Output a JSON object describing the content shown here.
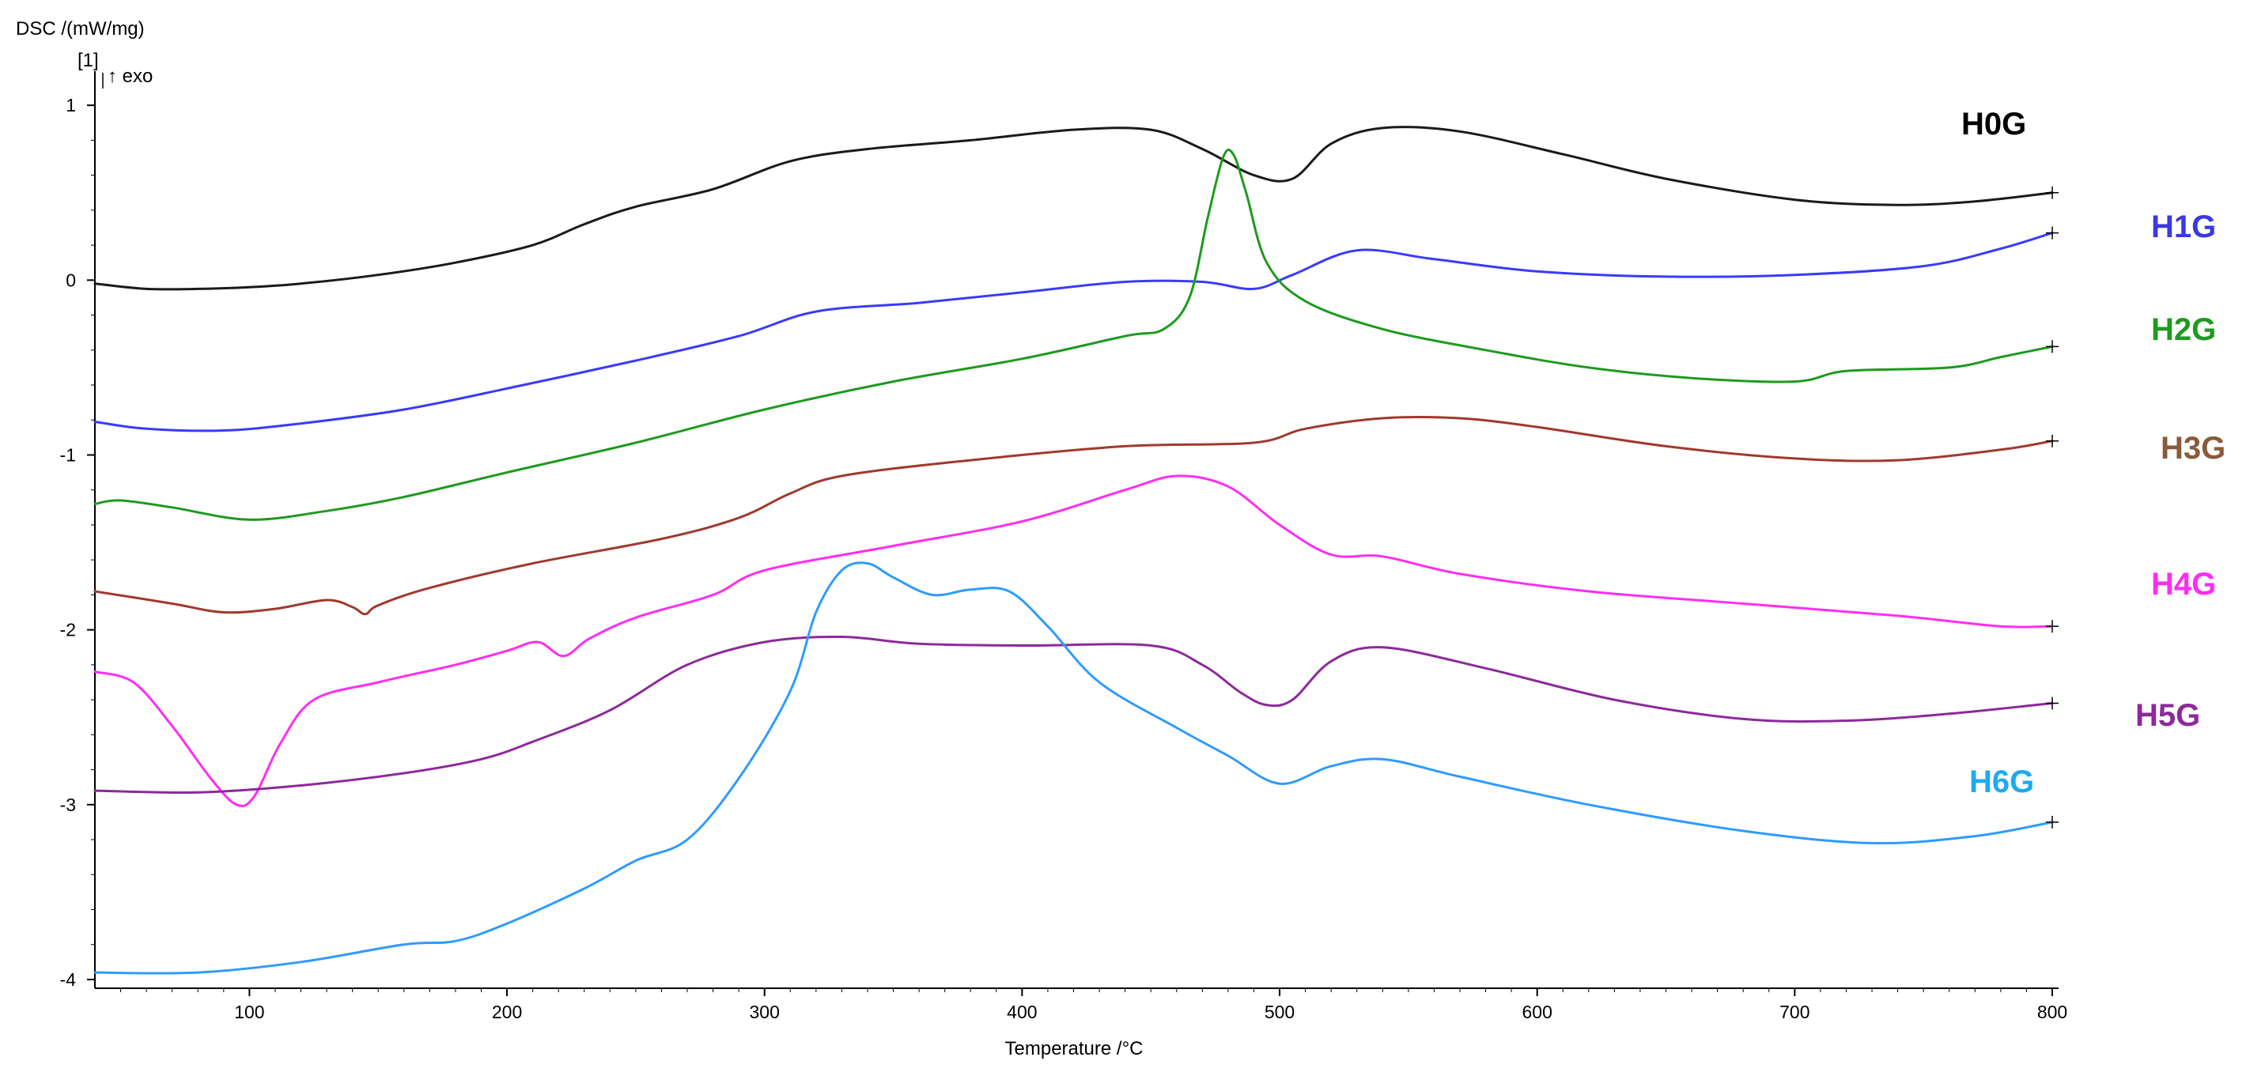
{
  "chart_data": {
    "type": "line",
    "title": "",
    "xlabel": "Temperature /°C",
    "ylabel": "DSC /(mW/mg)",
    "ylabel_unit_marker": "[1]",
    "exo_marker": "↑ exo",
    "xlim": [
      40,
      800
    ],
    "ylim": [
      -4.05,
      1.15
    ],
    "xticks": [
      100,
      200,
      300,
      400,
      500,
      600,
      700,
      800
    ],
    "yticks": [
      1,
      0,
      -1,
      -2,
      -3,
      -4
    ],
    "grid": false,
    "legend_placement": "right (inline labels)",
    "series": [
      {
        "name": "H0G",
        "color": "#1a1a1a",
        "points": [
          [
            40,
            -0.02
          ],
          [
            60,
            -0.05
          ],
          [
            80,
            -0.05
          ],
          [
            100,
            -0.04
          ],
          [
            120,
            -0.02
          ],
          [
            150,
            0.03
          ],
          [
            180,
            0.1
          ],
          [
            210,
            0.2
          ],
          [
            230,
            0.32
          ],
          [
            250,
            0.42
          ],
          [
            280,
            0.52
          ],
          [
            310,
            0.68
          ],
          [
            340,
            0.75
          ],
          [
            380,
            0.8
          ],
          [
            420,
            0.86
          ],
          [
            450,
            0.86
          ],
          [
            470,
            0.75
          ],
          [
            490,
            0.6
          ],
          [
            505,
            0.58
          ],
          [
            520,
            0.78
          ],
          [
            540,
            0.87
          ],
          [
            570,
            0.85
          ],
          [
            610,
            0.72
          ],
          [
            650,
            0.58
          ],
          [
            700,
            0.46
          ],
          [
            740,
            0.43
          ],
          [
            770,
            0.45
          ],
          [
            800,
            0.5
          ]
        ]
      },
      {
        "name": "H1G",
        "color": "#3a3aff",
        "points": [
          [
            40,
            -0.81
          ],
          [
            60,
            -0.85
          ],
          [
            90,
            -0.86
          ],
          [
            120,
            -0.82
          ],
          [
            160,
            -0.74
          ],
          [
            200,
            -0.62
          ],
          [
            250,
            -0.46
          ],
          [
            290,
            -0.32
          ],
          [
            320,
            -0.18
          ],
          [
            360,
            -0.13
          ],
          [
            400,
            -0.07
          ],
          [
            440,
            -0.01
          ],
          [
            470,
            -0.01
          ],
          [
            490,
            -0.05
          ],
          [
            505,
            0.03
          ],
          [
            530,
            0.17
          ],
          [
            560,
            0.12
          ],
          [
            600,
            0.05
          ],
          [
            650,
            0.02
          ],
          [
            700,
            0.03
          ],
          [
            750,
            0.08
          ],
          [
            780,
            0.18
          ],
          [
            800,
            0.27
          ]
        ]
      },
      {
        "name": "H2G",
        "color": "#1e9a1e",
        "points": [
          [
            40,
            -1.28
          ],
          [
            50,
            -1.26
          ],
          [
            70,
            -1.3
          ],
          [
            100,
            -1.37
          ],
          [
            130,
            -1.32
          ],
          [
            160,
            -1.24
          ],
          [
            200,
            -1.1
          ],
          [
            250,
            -0.93
          ],
          [
            300,
            -0.74
          ],
          [
            350,
            -0.58
          ],
          [
            400,
            -0.45
          ],
          [
            440,
            -0.32
          ],
          [
            455,
            -0.28
          ],
          [
            465,
            -0.1
          ],
          [
            472,
            0.35
          ],
          [
            478,
            0.7
          ],
          [
            482,
            0.72
          ],
          [
            487,
            0.5
          ],
          [
            495,
            0.1
          ],
          [
            510,
            -0.12
          ],
          [
            540,
            -0.28
          ],
          [
            580,
            -0.4
          ],
          [
            620,
            -0.5
          ],
          [
            660,
            -0.56
          ],
          [
            700,
            -0.58
          ],
          [
            720,
            -0.52
          ],
          [
            760,
            -0.5
          ],
          [
            780,
            -0.44
          ],
          [
            800,
            -0.38
          ]
        ]
      },
      {
        "name": "H3G",
        "color": "#a0392e",
        "points": [
          [
            40,
            -1.78
          ],
          [
            70,
            -1.85
          ],
          [
            90,
            -1.9
          ],
          [
            110,
            -1.88
          ],
          [
            130,
            -1.83
          ],
          [
            140,
            -1.87
          ],
          [
            145,
            -1.91
          ],
          [
            150,
            -1.86
          ],
          [
            170,
            -1.76
          ],
          [
            210,
            -1.62
          ],
          [
            260,
            -1.48
          ],
          [
            290,
            -1.36
          ],
          [
            310,
            -1.22
          ],
          [
            330,
            -1.12
          ],
          [
            380,
            -1.03
          ],
          [
            440,
            -0.95
          ],
          [
            490,
            -0.93
          ],
          [
            510,
            -0.85
          ],
          [
            540,
            -0.79
          ],
          [
            570,
            -0.79
          ],
          [
            600,
            -0.84
          ],
          [
            650,
            -0.95
          ],
          [
            700,
            -1.02
          ],
          [
            740,
            -1.03
          ],
          [
            780,
            -0.97
          ],
          [
            800,
            -0.92
          ]
        ]
      },
      {
        "name": "H4G",
        "color": "#ff2df2",
        "points": [
          [
            40,
            -2.24
          ],
          [
            55,
            -2.3
          ],
          [
            70,
            -2.55
          ],
          [
            85,
            -2.85
          ],
          [
            95,
            -3.0
          ],
          [
            102,
            -2.95
          ],
          [
            112,
            -2.65
          ],
          [
            125,
            -2.4
          ],
          [
            150,
            -2.3
          ],
          [
            180,
            -2.2
          ],
          [
            200,
            -2.12
          ],
          [
            212,
            -2.07
          ],
          [
            222,
            -2.15
          ],
          [
            232,
            -2.05
          ],
          [
            250,
            -1.93
          ],
          [
            280,
            -1.8
          ],
          [
            300,
            -1.66
          ],
          [
            350,
            -1.52
          ],
          [
            400,
            -1.38
          ],
          [
            440,
            -1.2
          ],
          [
            460,
            -1.12
          ],
          [
            480,
            -1.18
          ],
          [
            500,
            -1.4
          ],
          [
            520,
            -1.57
          ],
          [
            540,
            -1.58
          ],
          [
            570,
            -1.68
          ],
          [
            620,
            -1.78
          ],
          [
            680,
            -1.85
          ],
          [
            740,
            -1.92
          ],
          [
            780,
            -1.98
          ],
          [
            800,
            -1.98
          ]
        ]
      },
      {
        "name": "H5G",
        "color": "#8c2a9a",
        "points": [
          [
            40,
            -2.92
          ],
          [
            80,
            -2.93
          ],
          [
            120,
            -2.89
          ],
          [
            160,
            -2.82
          ],
          [
            190,
            -2.74
          ],
          [
            210,
            -2.64
          ],
          [
            240,
            -2.46
          ],
          [
            270,
            -2.2
          ],
          [
            300,
            -2.07
          ],
          [
            330,
            -2.04
          ],
          [
            360,
            -2.08
          ],
          [
            400,
            -2.09
          ],
          [
            450,
            -2.09
          ],
          [
            470,
            -2.2
          ],
          [
            485,
            -2.36
          ],
          [
            495,
            -2.43
          ],
          [
            505,
            -2.4
          ],
          [
            520,
            -2.18
          ],
          [
            540,
            -2.1
          ],
          [
            580,
            -2.22
          ],
          [
            630,
            -2.4
          ],
          [
            680,
            -2.51
          ],
          [
            720,
            -2.52
          ],
          [
            760,
            -2.48
          ],
          [
            800,
            -2.42
          ]
        ]
      },
      {
        "name": "H6G",
        "color": "#2f9bff",
        "points": [
          [
            40,
            -3.96
          ],
          [
            80,
            -3.96
          ],
          [
            120,
            -3.9
          ],
          [
            160,
            -3.8
          ],
          [
            180,
            -3.78
          ],
          [
            200,
            -3.68
          ],
          [
            230,
            -3.48
          ],
          [
            250,
            -3.32
          ],
          [
            270,
            -3.2
          ],
          [
            290,
            -2.85
          ],
          [
            310,
            -2.35
          ],
          [
            320,
            -1.9
          ],
          [
            330,
            -1.66
          ],
          [
            340,
            -1.62
          ],
          [
            350,
            -1.7
          ],
          [
            365,
            -1.8
          ],
          [
            380,
            -1.77
          ],
          [
            395,
            -1.78
          ],
          [
            410,
            -1.98
          ],
          [
            430,
            -2.3
          ],
          [
            460,
            -2.56
          ],
          [
            480,
            -2.72
          ],
          [
            500,
            -2.88
          ],
          [
            520,
            -2.78
          ],
          [
            540,
            -2.74
          ],
          [
            570,
            -2.84
          ],
          [
            620,
            -3.0
          ],
          [
            680,
            -3.15
          ],
          [
            730,
            -3.22
          ],
          [
            770,
            -3.18
          ],
          [
            800,
            -3.1
          ]
        ]
      }
    ]
  }
}
